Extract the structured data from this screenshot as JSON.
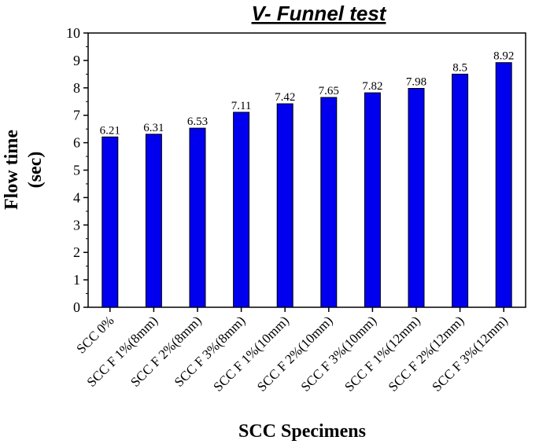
{
  "chart_data": {
    "type": "bar",
    "title": "V- Funnel test",
    "xlabel": "SCC Specimens",
    "ylabel_lines": [
      "Flow time",
      "(sec)"
    ],
    "categories": [
      "SCC 0%",
      "SCC F 1%(8mm)",
      "SCC F 2%(8mm)",
      "SCC F 3%(8mm)",
      "SCC F 1%(10mm)",
      "SCC F 2%(10mm)",
      "SCC F 3%(10mm)",
      "SCC F 1%(12mm)",
      "SCC F 2%(12mm)",
      "SCC F 3%(12mm)"
    ],
    "values": [
      6.21,
      6.31,
      6.53,
      7.11,
      7.42,
      7.65,
      7.82,
      7.98,
      8.5,
      8.92
    ],
    "data_labels": [
      "6.21",
      "6.31",
      "6.53",
      "7.11",
      "7.42",
      "7.65",
      "7.82",
      "7.98",
      "8.5",
      "8.92"
    ],
    "ylim": [
      0,
      10
    ],
    "yticks": [
      0,
      1,
      2,
      3,
      4,
      5,
      6,
      7,
      8,
      9,
      10
    ],
    "grid": false,
    "legend": "none",
    "bar_color": "#0000ee",
    "bar_stroke": "#000000"
  }
}
